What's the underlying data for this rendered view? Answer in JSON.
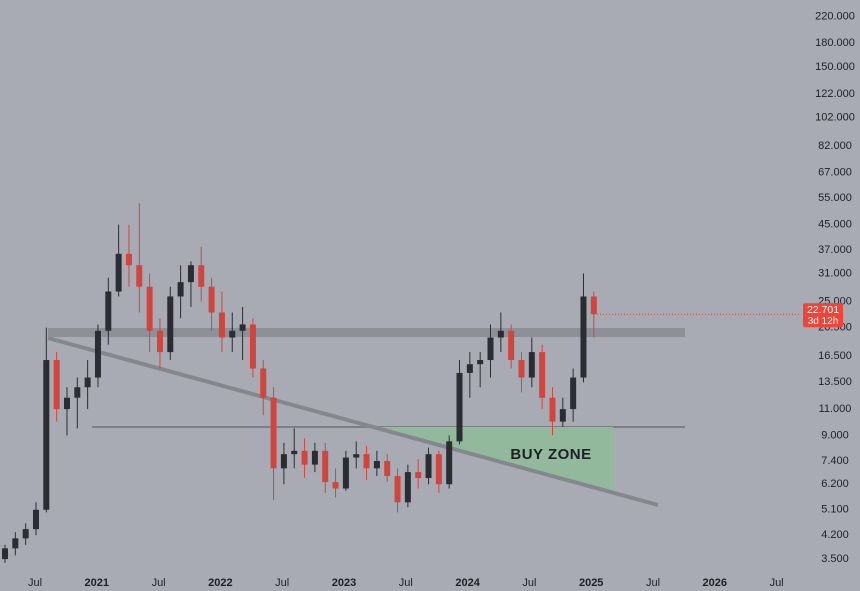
{
  "chart_data": {
    "type": "candlestick",
    "annotation": "BUY ZONE",
    "log_scale": true,
    "up_color": "#2b2d33",
    "down_color": "#d0453d",
    "background": "#a9abb4",
    "last_price": {
      "value": 22.701,
      "label": "22.701"
    },
    "countdown": "3d 12h",
    "last_price_color": "#f04438",
    "categories": [
      "Jul",
      "2021",
      "Jul",
      "2022",
      "Jul",
      "2023",
      "Jul",
      "2024",
      "Jul",
      "2025",
      "Jul",
      "2026",
      "Jul"
    ],
    "open": [
      3.5,
      3.8,
      4.1,
      4.4,
      5.1,
      16,
      11,
      12,
      13,
      14,
      20,
      27,
      36,
      33,
      28,
      20,
      17,
      26,
      29,
      33,
      28,
      23,
      19,
      20,
      21,
      15,
      12,
      7,
      7.8,
      8,
      7.2,
      8,
      6.3,
      6,
      7.6,
      7.8,
      7,
      7.4,
      6.6,
      5.4,
      6.8,
      6.5,
      7.8,
      6.2,
      8.6,
      14.5,
      15.5,
      16,
      19,
      20,
      16,
      14,
      17,
      12,
      10,
      11,
      14,
      26
    ],
    "high": [
      3.9,
      4.3,
      4.6,
      5.4,
      20.5,
      17,
      13,
      14,
      16,
      21,
      30,
      45,
      45,
      53,
      31,
      22,
      28,
      33,
      34,
      38,
      30,
      27,
      23,
      24,
      22,
      16,
      13,
      8.5,
      9.5,
      8.8,
      8.5,
      8.5,
      7,
      8,
      8.6,
      8.3,
      8,
      7.8,
      7,
      7.2,
      7.5,
      8.2,
      8,
      9,
      16,
      17,
      17,
      21,
      23,
      21,
      17,
      19,
      18,
      13,
      12,
      15,
      31,
      27
    ],
    "low": [
      3.4,
      3.6,
      3.9,
      4.2,
      5.0,
      10,
      9,
      9.5,
      11,
      13,
      18,
      26,
      28,
      23,
      17,
      15,
      16,
      22,
      24,
      25,
      20,
      17,
      17,
      16,
      14,
      10.5,
      5.5,
      6.2,
      7,
      6.5,
      6.8,
      5.8,
      5.6,
      5.9,
      7,
      6.4,
      6.6,
      6.3,
      5,
      5.2,
      6,
      6.2,
      5.8,
      6,
      8.4,
      12,
      13,
      14,
      17,
      15,
      12.5,
      13,
      11,
      9,
      9.6,
      10,
      13.5,
      19
    ],
    "close": [
      3.8,
      4.1,
      4.4,
      5.1,
      16,
      11,
      12,
      13,
      14,
      20,
      27,
      36,
      33,
      28,
      20,
      17,
      26,
      29,
      33,
      28,
      23,
      19,
      20,
      21,
      15,
      12,
      7,
      7.8,
      8,
      7.2,
      8,
      6.3,
      6,
      7.6,
      7.8,
      7,
      7.4,
      6.6,
      5.4,
      6.8,
      6.5,
      7.8,
      6.2,
      8.6,
      14.5,
      15.5,
      16,
      19,
      20,
      16,
      14,
      17,
      12,
      10,
      11,
      14,
      26,
      22.701
    ],
    "ylim": [
      3.1,
      250
    ],
    "yticks": [
      {
        "value": 220,
        "label": "220.000"
      },
      {
        "value": 180,
        "label": "180.000"
      },
      {
        "value": 150,
        "label": "150.000"
      },
      {
        "value": 122,
        "label": "122.000"
      },
      {
        "value": 102,
        "label": "102.000"
      },
      {
        "value": 82,
        "label": "82.000"
      },
      {
        "value": 67,
        "label": "67.000"
      },
      {
        "value": 55,
        "label": "55.000"
      },
      {
        "value": 45,
        "label": "45.000"
      },
      {
        "value": 37,
        "label": "37.000"
      },
      {
        "value": 31,
        "label": "31.000"
      },
      {
        "value": 25,
        "label": "25.000"
      },
      {
        "value": 20.5,
        "label": "20.500"
      },
      {
        "value": 16.5,
        "label": "16.500"
      },
      {
        "value": 13.5,
        "label": "13.500"
      },
      {
        "value": 11,
        "label": "11.000"
      },
      {
        "value": 9,
        "label": "9.000"
      },
      {
        "value": 7.4,
        "label": "7.400"
      },
      {
        "value": 6.2,
        "label": "6.200"
      },
      {
        "value": 5.1,
        "label": "5.100"
      },
      {
        "value": 4.2,
        "label": "4.200"
      },
      {
        "value": 3.5,
        "label": "3.500"
      }
    ]
  }
}
